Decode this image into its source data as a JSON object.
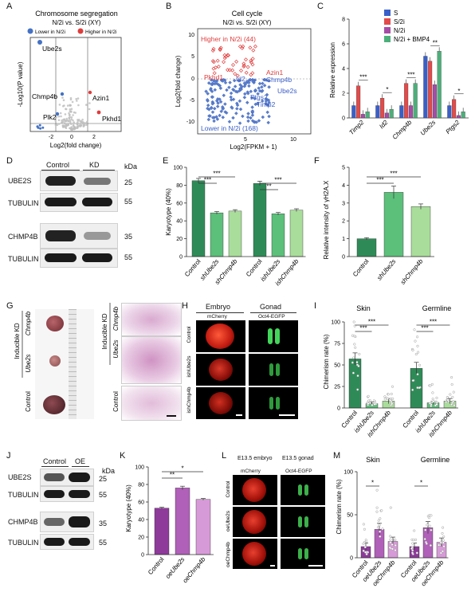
{
  "panel_letters": [
    "A",
    "B",
    "C",
    "D",
    "E",
    "F",
    "G",
    "H",
    "I",
    "J",
    "K",
    "L",
    "M"
  ],
  "A": {
    "title_line1": "Chromosome segregation",
    "title_line2": "N/2i vs. S/2i (XY)",
    "legend_lower": "Lower in N/2i",
    "legend_higher": "Higher in N/2i",
    "ylabel": "-Log10(P value)",
    "xlabel": "Log2(fold change)",
    "xticks": [
      "-2",
      "0",
      "2"
    ],
    "genes": {
      "ube2s": "Ube2s",
      "chmp4b": "Chmp4b",
      "plk2": "Plk2",
      "azin1": "Azin1",
      "pkhd1": "Pkhd1"
    },
    "colors": {
      "lower": "#4472c4",
      "higher": "#e03c3c",
      "ns": "#bdbdbd"
    }
  },
  "B": {
    "title_line1": "Cell cycle",
    "title_line2": "N/2i vs. S/2i (XY)",
    "higher_label": "Higher in N/2i (44)",
    "lower_label": "Lower in N/2i (168)",
    "ylabel": "Log2(fold change)",
    "xlabel": "Log2(FPKM + 1)",
    "yticks": [
      "10",
      "5",
      "0",
      "-5",
      "-10"
    ],
    "xticks": [
      "5",
      "10"
    ],
    "genes": {
      "azin1": "Azin1",
      "pkhd1": "Pkhd1",
      "id2": "Id2",
      "chmp4b": "Chmp4b",
      "ube2s": "Ube2s",
      "ptgs2": "Ptgs2",
      "timp2": "Timp2"
    }
  },
  "C": {
    "ylabel": "Relative expression",
    "yticks": [
      "0",
      "2",
      "4",
      "6",
      "8"
    ],
    "legend": [
      "S",
      "S/2i",
      "N/2i",
      "N/2i + BMP4"
    ],
    "colors": [
      "#3a5fc8",
      "#e24b4b",
      "#a64ca6",
      "#4caf7a"
    ],
    "chart_data": {
      "type": "bar",
      "categories": [
        "Timp2",
        "Id2",
        "Chmp4b",
        "Ube2s",
        "Ptgs2"
      ],
      "series": [
        {
          "name": "S",
          "values": [
            1.0,
            1.0,
            1.0,
            5.0,
            1.0
          ]
        },
        {
          "name": "S/2i",
          "values": [
            2.6,
            1.6,
            2.8,
            4.6,
            1.5
          ]
        },
        {
          "name": "N/2i",
          "values": [
            0.3,
            0.4,
            1.0,
            2.7,
            0.2
          ]
        },
        {
          "name": "N/2i + BMP4",
          "values": [
            0.5,
            0.7,
            2.8,
            5.4,
            0.5
          ]
        }
      ],
      "ylim": [
        0,
        8
      ]
    },
    "sig": [
      "***",
      "*",
      "***",
      "**",
      "*"
    ]
  },
  "D": {
    "headers": [
      "Control",
      "KD"
    ],
    "rows": [
      "UBE2S",
      "TUBULIN",
      "CHMP4B",
      "TUBULIN"
    ],
    "kda_label": "kDa",
    "weights": [
      "25",
      "55",
      "35",
      "55"
    ]
  },
  "E": {
    "ylabel": "Karyotype (40%)",
    "yticks": [
      "0",
      "20",
      "40",
      "60",
      "80",
      "100"
    ],
    "chart_data": {
      "type": "bar",
      "categories": [
        "Control",
        "shUbe2s",
        "shChmp4b",
        "Control",
        "ishUbe2s",
        "ishChmp4b"
      ],
      "values": [
        85,
        49,
        51,
        82,
        48,
        52
      ],
      "ylim": [
        0,
        100
      ]
    },
    "sig": [
      "***",
      "***",
      "**",
      "***"
    ],
    "colors": [
      "#2e8b57",
      "#5cbf7a",
      "#a9dd9b"
    ]
  },
  "F": {
    "ylabel": "Relative intensity of γH2A.X",
    "yticks": [
      "0",
      "1",
      "2",
      "3",
      "4",
      "5"
    ],
    "chart_data": {
      "type": "bar",
      "categories": [
        "Control",
        "shUbe2s",
        "shChmp4b"
      ],
      "values": [
        1.0,
        3.6,
        2.8
      ],
      "ylim": [
        0,
        5
      ]
    },
    "sig": [
      "***",
      "***"
    ],
    "colors": [
      "#2e8b57",
      "#5cbf7a",
      "#a9dd9b"
    ]
  },
  "G": {
    "left_labels": [
      "Inducible KD",
      "Chmp4b",
      "Ube2s",
      "Control"
    ],
    "right_labels": [
      "Inducible KD",
      "Chmp4b",
      "Ube2s",
      "Control"
    ]
  },
  "H": {
    "col1": "Embryo",
    "col2": "Gonad",
    "sub1": "mCherry",
    "sub2": "Oct4-EGFP",
    "rows": [
      "Control",
      "ishUbe2s",
      "ishChmp4b"
    ]
  },
  "I": {
    "group1": "Skin",
    "group2": "Germline",
    "ylabel": "Chimerism rate (%)",
    "yticks": [
      "0",
      "25",
      "50",
      "75",
      "100"
    ],
    "chart_data": {
      "type": "bar",
      "categories": [
        "Control",
        "ishUbe2s",
        "ishChmp4b",
        "Control",
        "ishUbe2s",
        "ishChmp4b"
      ],
      "values": [
        57,
        5,
        8,
        46,
        6,
        8
      ],
      "ylim": [
        0,
        100
      ]
    },
    "sig": [
      "***",
      "***",
      "***",
      "***"
    ]
  },
  "J": {
    "headers": [
      "Control",
      "OE"
    ],
    "rows": [
      "UBE2S",
      "TUBULIN",
      "CHMP4B",
      "TUBULIN"
    ],
    "kda_label": "kDa",
    "weights": [
      "25",
      "55",
      "35",
      "55"
    ]
  },
  "K": {
    "ylabel": "Karyotype (40%)",
    "yticks": [
      "0",
      "20",
      "40",
      "60",
      "80",
      "100"
    ],
    "chart_data": {
      "type": "bar",
      "categories": [
        "Control",
        "oeUbe2s",
        "oeChmp4b"
      ],
      "values": [
        53,
        76,
        63
      ],
      "ylim": [
        0,
        100
      ]
    },
    "sig": [
      "**",
      "*"
    ],
    "colors": [
      "#8e3a9b",
      "#b060b8",
      "#d79ad8"
    ]
  },
  "L": {
    "col1": "E13.5 embryo",
    "col2": "E13.5 gonad",
    "sub1": "mCherry",
    "sub2": "Oct4-EGFP",
    "rows": [
      "Control",
      "oeUbe2s",
      "oeChmp4b"
    ]
  },
  "M": {
    "group1": "Skin",
    "group2": "Germline",
    "ylabel": "Chimerism rate (%)",
    "yticks": [
      "0",
      "50",
      "100"
    ],
    "chart_data": {
      "type": "bar",
      "categories": [
        "Control",
        "oeUbe2s",
        "oeChmp4b",
        "Control",
        "oeUbe2s",
        "oeChmp4b"
      ],
      "values": [
        13,
        33,
        19,
        13,
        35,
        18
      ],
      "ylim": [
        0,
        100
      ]
    },
    "sig": [
      "*",
      "*"
    ],
    "colors": [
      "#8e3a9b",
      "#b060b8",
      "#d79ad8"
    ]
  }
}
